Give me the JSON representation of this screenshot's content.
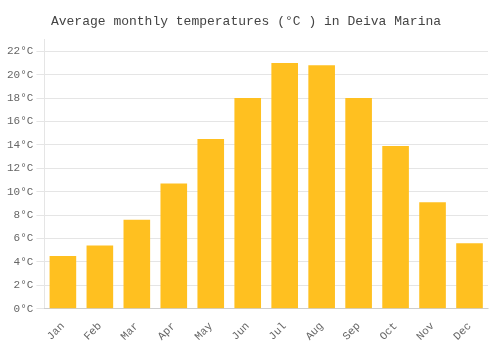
{
  "chart_data": {
    "type": "bar",
    "title": "Average monthly temperatures (°C ) in Deiva Marina",
    "categories": [
      "Jan",
      "Feb",
      "Mar",
      "Apr",
      "May",
      "Jun",
      "Jul",
      "Aug",
      "Sep",
      "Oct",
      "Nov",
      "Dec"
    ],
    "values": [
      4.5,
      5.4,
      7.6,
      10.7,
      14.5,
      18.0,
      21.0,
      20.8,
      18.0,
      13.9,
      9.1,
      5.6
    ],
    "color": "#FFC020",
    "ylim": [
      0,
      23
    ],
    "yticks": [
      {
        "value": 0,
        "label": "0°C"
      },
      {
        "value": 2,
        "label": "2°C"
      },
      {
        "value": 4,
        "label": "4°C"
      },
      {
        "value": 6,
        "label": "6°C"
      },
      {
        "value": 8,
        "label": "8°C"
      },
      {
        "value": 10,
        "label": "10°C"
      },
      {
        "value": 12,
        "label": "12°C"
      },
      {
        "value": 14,
        "label": "14°C"
      },
      {
        "value": 16,
        "label": "16°C"
      },
      {
        "value": 18,
        "label": "18°C"
      },
      {
        "value": 20,
        "label": "20°C"
      },
      {
        "value": 22,
        "label": "22°C"
      }
    ],
    "grid": true
  }
}
